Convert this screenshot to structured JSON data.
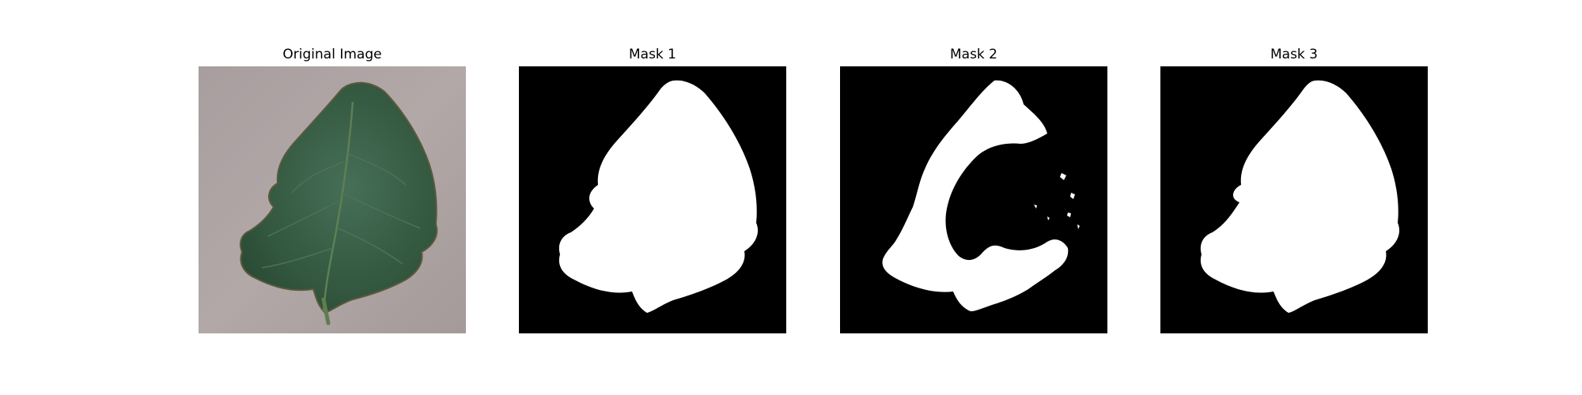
{
  "panels": [
    {
      "title": "Original Image",
      "kind": "photo"
    },
    {
      "title": "Mask 1",
      "kind": "mask"
    },
    {
      "title": "Mask 2",
      "kind": "mask"
    },
    {
      "title": "Mask 3",
      "kind": "mask"
    }
  ],
  "colors": {
    "background": "#ffffff",
    "mask_background": "#000000",
    "mask_foreground": "#ffffff",
    "leaf_dark": "#2f5a40",
    "leaf_mid": "#3d6b4e",
    "surface": "#a89d9d"
  }
}
